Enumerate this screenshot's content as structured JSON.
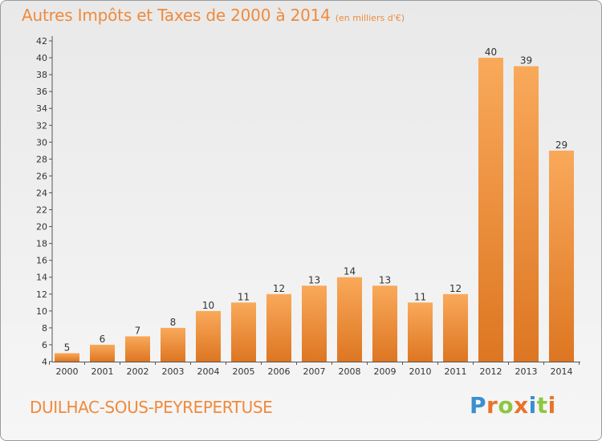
{
  "title": "Autres Impôts et Taxes de 2000 à 2014",
  "subtitle": "(en milliers d'€)",
  "commune": "DUILHAC-SOUS-PEYREPERTUSE",
  "logo": {
    "letters": [
      "P",
      "r",
      "o",
      "x",
      "i",
      "t",
      "i"
    ],
    "colors": [
      "#3a8fd0",
      "#e8742a",
      "#8dc63f",
      "#e8742a",
      "#3a8fd0",
      "#8dc63f",
      "#e8742a"
    ]
  },
  "colors": {
    "bar_light": "#f9a95a",
    "bar_dark": "#dd7622",
    "title": "#f08a3c"
  },
  "chart_data": {
    "type": "bar",
    "categories": [
      "2000",
      "2001",
      "2002",
      "2003",
      "2004",
      "2005",
      "2006",
      "2007",
      "2008",
      "2009",
      "2010",
      "2011",
      "2012",
      "2013",
      "2014"
    ],
    "values": [
      5,
      6,
      7,
      8,
      10,
      11,
      12,
      13,
      14,
      13,
      11,
      12,
      40,
      39,
      29
    ],
    "ylim": [
      4,
      42
    ],
    "yticks": [
      4,
      6,
      8,
      10,
      12,
      14,
      16,
      18,
      20,
      22,
      24,
      26,
      28,
      30,
      32,
      34,
      36,
      38,
      40,
      42
    ],
    "grid": false
  }
}
